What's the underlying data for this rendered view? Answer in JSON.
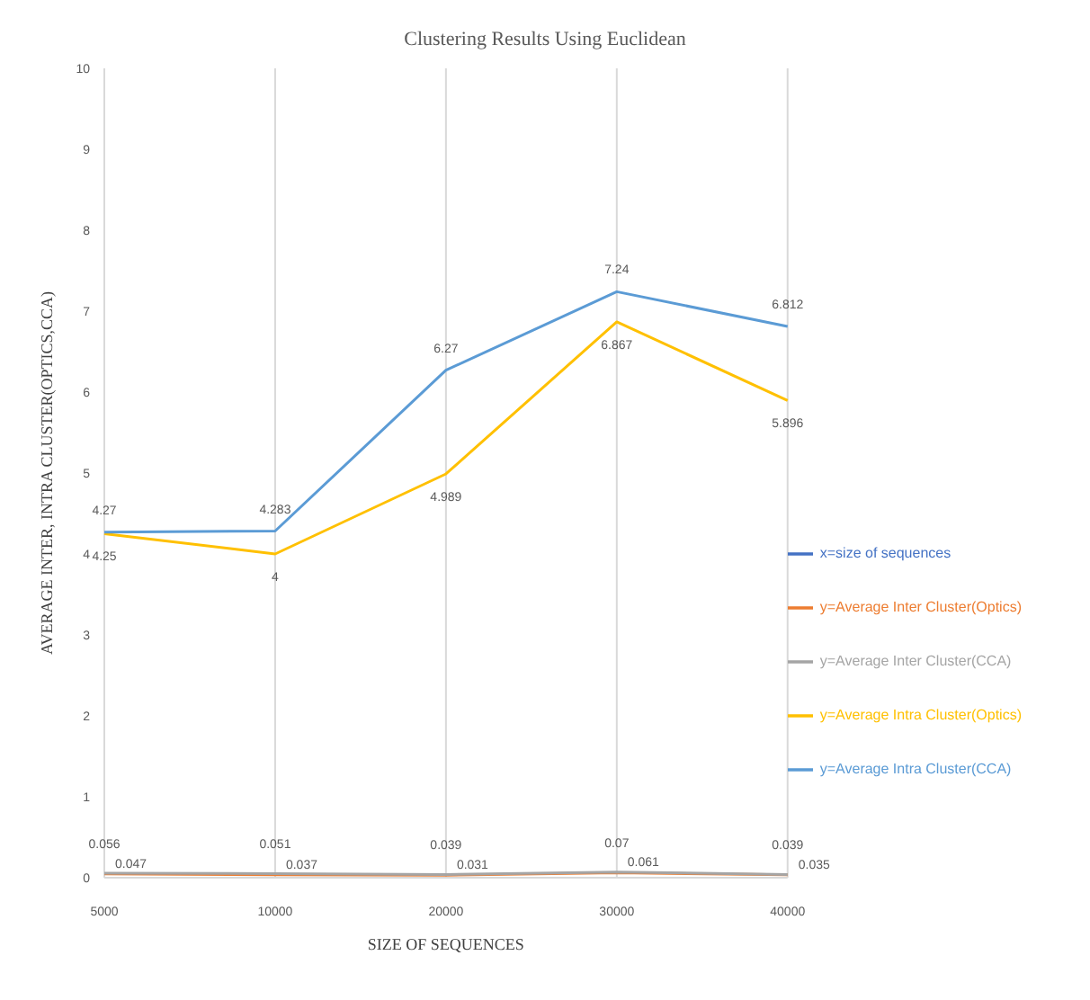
{
  "chart_data": {
    "type": "line",
    "title": "Clustering Results Using Euclidean",
    "xlabel": "SIZE OF SEQUENCES",
    "ylabel": "AVERAGE INTER, INTRA CLUSTER(OPTICS,CCA)",
    "categories": [
      "5000",
      "10000",
      "20000",
      "30000",
      "40000"
    ],
    "series": [
      {
        "name": "x=size of sequences",
        "color": "#4472c4",
        "values": [
          null,
          null,
          null,
          null,
          null
        ]
      },
      {
        "name": "y=Average Inter Cluster(Optics)",
        "color": "#ed7d31",
        "values": [
          0.047,
          0.037,
          0.031,
          0.061,
          0.035
        ]
      },
      {
        "name": "y=Average Inter Cluster(CCA)",
        "color": "#a5a5a5",
        "values": [
          0.056,
          0.051,
          0.039,
          0.07,
          0.039
        ]
      },
      {
        "name": "y=Average Intra Cluster(Optics)",
        "color": "#ffc000",
        "values": [
          4.25,
          4,
          4.989,
          6.867,
          5.896
        ]
      },
      {
        "name": "y=Average Intra Cluster(CCA)",
        "color": "#5b9bd5",
        "values": [
          4.27,
          4.283,
          6.27,
          7.24,
          6.812
        ]
      }
    ],
    "ylim": [
      0,
      10
    ],
    "yticks": [
      0,
      1,
      2,
      3,
      4,
      5,
      6,
      7,
      8,
      9,
      10
    ],
    "grid": "x",
    "legend": "right",
    "marker": "none",
    "line_style": "solid",
    "data_labels": true
  }
}
